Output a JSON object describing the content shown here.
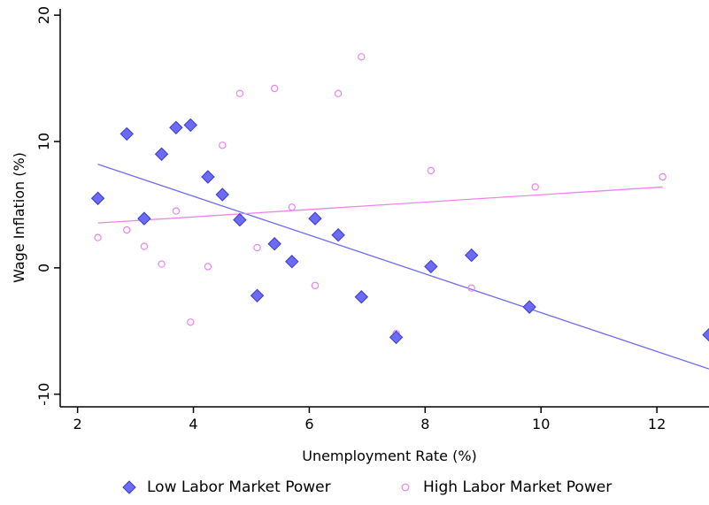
{
  "chart_data": {
    "type": "scatter",
    "xlabel": "Unemployment Rate  (%)",
    "ylabel": "Wage Inflation (%)",
    "xlim": [
      1.7,
      12.9
    ],
    "ylim": [
      -11,
      20.5
    ],
    "x_ticks": [
      2,
      4,
      6,
      8,
      10,
      12
    ],
    "y_ticks": [
      -10,
      0,
      10,
      20
    ],
    "grid": false,
    "legend_position": "bottom",
    "series": [
      {
        "name": "Low Labor Market Power",
        "marker": "diamond",
        "color": "#6B6BF5",
        "edge_color": "#3A3ACB",
        "points": [
          [
            2.35,
            5.5
          ],
          [
            2.85,
            10.6
          ],
          [
            3.15,
            3.9
          ],
          [
            3.45,
            9.0
          ],
          [
            3.7,
            11.1
          ],
          [
            3.95,
            11.3
          ],
          [
            4.25,
            7.2
          ],
          [
            4.5,
            5.8
          ],
          [
            4.8,
            3.8
          ],
          [
            5.1,
            -2.2
          ],
          [
            5.4,
            1.9
          ],
          [
            5.7,
            0.5
          ],
          [
            6.1,
            3.9
          ],
          [
            6.5,
            2.6
          ],
          [
            6.9,
            -2.3
          ],
          [
            7.5,
            -5.5
          ],
          [
            8.1,
            0.1
          ],
          [
            8.8,
            1.0
          ],
          [
            9.8,
            -3.1
          ],
          [
            12.9,
            -5.3
          ]
        ],
        "fit": {
          "x": [
            2.35,
            12.9
          ],
          "y": [
            8.2,
            -8.0
          ]
        }
      },
      {
        "name": "High Labor Market Power",
        "marker": "circle",
        "color": "#EE82EE",
        "edge_color": "#EE82EE",
        "points": [
          [
            2.35,
            2.4
          ],
          [
            2.85,
            3.0
          ],
          [
            3.15,
            1.7
          ],
          [
            3.45,
            0.3
          ],
          [
            3.7,
            4.5
          ],
          [
            3.95,
            -4.3
          ],
          [
            4.25,
            0.1
          ],
          [
            4.5,
            9.7
          ],
          [
            4.8,
            13.8
          ],
          [
            5.1,
            1.6
          ],
          [
            5.4,
            14.2
          ],
          [
            5.7,
            4.8
          ],
          [
            6.1,
            -1.4
          ],
          [
            6.5,
            13.8
          ],
          [
            6.9,
            16.7
          ],
          [
            7.5,
            -5.2
          ],
          [
            8.1,
            7.7
          ],
          [
            8.8,
            -1.6
          ],
          [
            9.9,
            6.4
          ],
          [
            12.1,
            7.2
          ]
        ],
        "fit": {
          "x": [
            2.35,
            12.1
          ],
          "y": [
            3.55,
            6.4
          ]
        }
      }
    ]
  }
}
